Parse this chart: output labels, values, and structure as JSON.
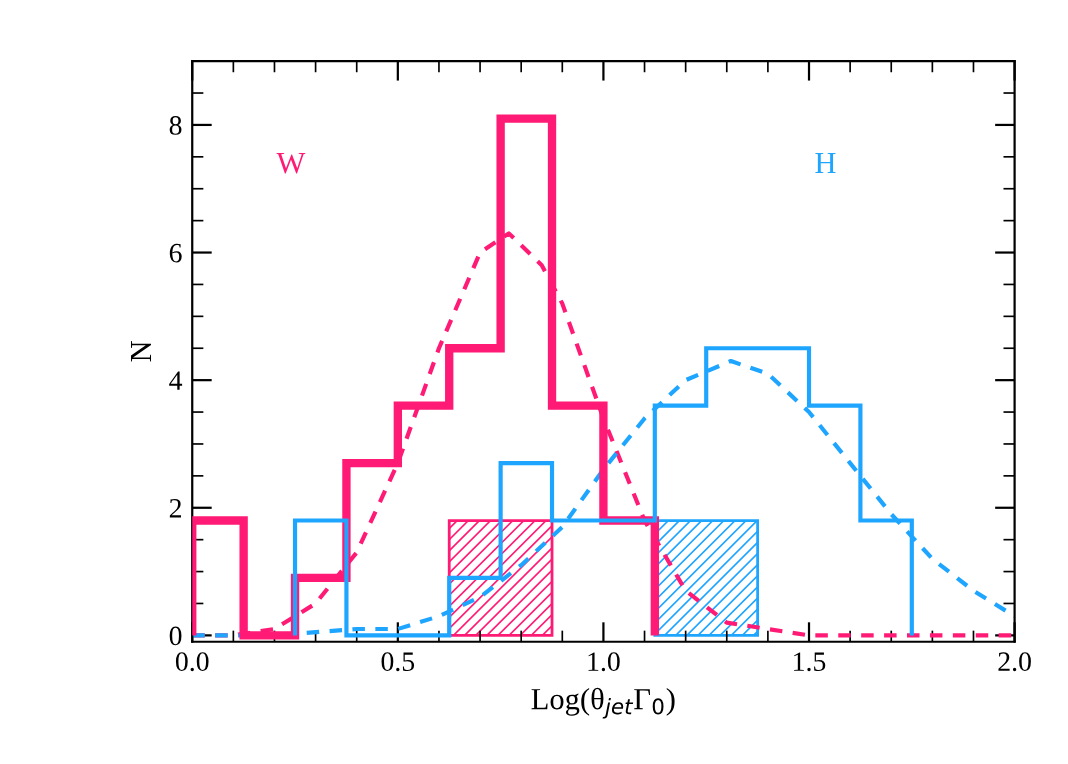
{
  "chart_data": {
    "type": "histogram",
    "xlabel": "Log(θ$_{jet}$Γ$_{0}$)",
    "ylabel": "N",
    "xlim": [
      0,
      2
    ],
    "xticks": [
      {
        "value": 0,
        "label": "0.0"
      },
      0.5,
      {
        "value": 1,
        "label": "1.0"
      },
      1.5,
      {
        "value": 2,
        "label": "2.0"
      }
    ],
    "ylim": [
      -0.1,
      9
    ],
    "yticks": [
      0,
      2,
      4,
      6,
      8
    ],
    "grid": false,
    "legend": false,
    "series": [
      {
        "name": "W",
        "color": "#ff1a75",
        "bins": [
          0,
          0.125,
          0.25,
          0.375,
          0.5,
          0.625,
          0.75,
          0.875,
          1.0,
          1.125
        ],
        "values": [
          1.8,
          0,
          0.9,
          2.7,
          3.6,
          4.5,
          8.1,
          3.6,
          1.8
        ]
      },
      {
        "name": "H",
        "color": "#1ea5ff",
        "bins": [
          0.25,
          0.375,
          0.5,
          0.625,
          0.75,
          0.875,
          1.0,
          1.125,
          1.25,
          1.375,
          1.5,
          1.625,
          1.75
        ],
        "values": [
          1.8,
          0,
          0,
          0.9,
          2.7,
          1.8,
          1.8,
          3.6,
          4.5,
          4.5,
          3.6,
          1.8
        ]
      },
      {
        "color": "#ff1a75",
        "bins": [
          0.625,
          0.875
        ],
        "values": [
          1.8
        ]
      },
      {
        "color": "#1ea5ff",
        "bins": [
          1.125,
          1.375
        ],
        "values": [
          1.8
        ]
      },
      {
        "type": "line",
        "line_style": "dashed",
        "color": "#ff1a75",
        "x": [
          0,
          0.1,
          0.2,
          0.3,
          0.4,
          0.5,
          0.6,
          0.7,
          0.77,
          0.85,
          0.9,
          1.0,
          1.1,
          1.2,
          1.3,
          1.4,
          1.5,
          1.6,
          2.0
        ],
        "values": [
          0.0,
          0.0,
          0.1,
          0.5,
          1.3,
          2.7,
          4.5,
          6.0,
          6.3,
          5.8,
          5.2,
          3.4,
          1.8,
          0.7,
          0.2,
          0.1,
          0.0,
          0.0,
          0.0
        ]
      },
      {
        "type": "line",
        "line_style": "dashed",
        "color": "#1ea5ff",
        "x": [
          0,
          0.2,
          0.4,
          0.5,
          0.6,
          0.7,
          0.8,
          0.9,
          1.0,
          1.1,
          1.2,
          1.31,
          1.4,
          1.5,
          1.6,
          1.7,
          1.8,
          1.9,
          2.0
        ],
        "values": [
          0.0,
          0.0,
          0.1,
          0.1,
          0.3,
          0.6,
          1.1,
          1.7,
          2.6,
          3.4,
          4.0,
          4.3,
          4.1,
          3.5,
          2.7,
          1.9,
          1.2,
          0.7,
          0.3
        ]
      }
    ]
  }
}
